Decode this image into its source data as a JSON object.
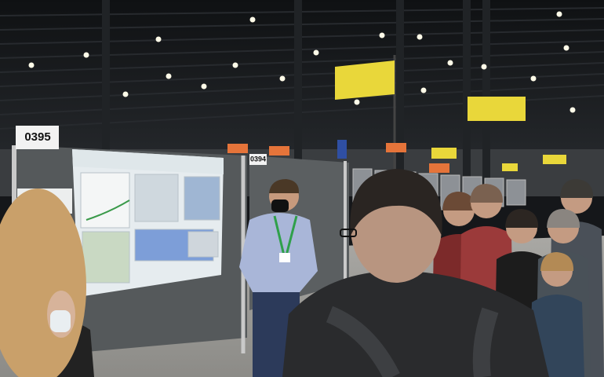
{
  "scene": {
    "booth_numbers": [
      "0395",
      "0394"
    ]
  }
}
